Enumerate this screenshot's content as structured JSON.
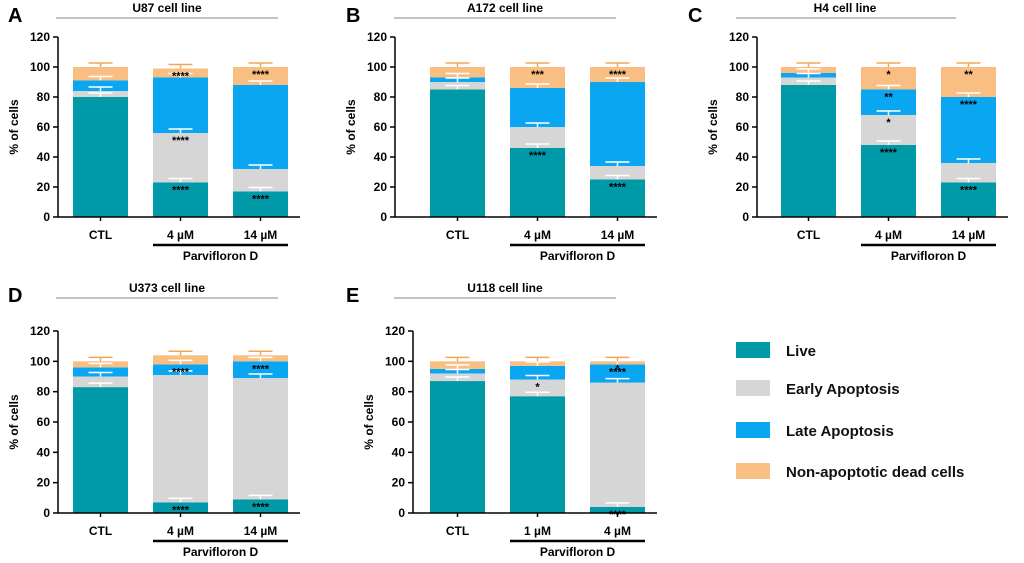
{
  "colors": {
    "live": "#0099A8",
    "early": "#D6D6D6",
    "late": "#0AA6F2",
    "dead": "#F9BF82"
  },
  "legend": {
    "live": "Live",
    "early": "Early Apoptosis",
    "late": "Late Apoptosis",
    "dead": "Non-apoptotic dead cells"
  },
  "chart_data": [
    {
      "type": "bar",
      "stacked": true,
      "panel_letter": "A",
      "title": "U87 cell line",
      "ylabel": "% of cells",
      "ylim": [
        0,
        120
      ],
      "yticks": [
        0,
        20,
        40,
        60,
        80,
        100,
        120
      ],
      "categories": [
        "CTL",
        "4 µM",
        "14 µM"
      ],
      "group_label": "Parvifloron D",
      "series": [
        {
          "name": "Live",
          "key": "live",
          "values": [
            80,
            23,
            17
          ]
        },
        {
          "name": "Early Apoptosis",
          "key": "early",
          "values": [
            4,
            33,
            15
          ]
        },
        {
          "name": "Late Apoptosis",
          "key": "late",
          "values": [
            7,
            37,
            56
          ]
        },
        {
          "name": "Non-apoptotic dead cells",
          "key": "dead",
          "values": [
            9,
            6,
            12
          ]
        }
      ],
      "annotations": [
        [
          "",
          "",
          "",
          ""
        ],
        [
          "****",
          "****",
          "",
          "****"
        ],
        [
          "****",
          "",
          "",
          "****"
        ]
      ]
    },
    {
      "type": "bar",
      "stacked": true,
      "panel_letter": "B",
      "title": "A172 cell line",
      "ylabel": "% of cells",
      "ylim": [
        0,
        120
      ],
      "yticks": [
        0,
        20,
        40,
        60,
        80,
        100,
        120
      ],
      "categories": [
        "CTL",
        "4 µM",
        "14 µM"
      ],
      "group_label": "Parvifloron D",
      "series": [
        {
          "name": "Live",
          "key": "live",
          "values": [
            85,
            46,
            25
          ]
        },
        {
          "name": "Early Apoptosis",
          "key": "early",
          "values": [
            5,
            14,
            9
          ]
        },
        {
          "name": "Late Apoptosis",
          "key": "late",
          "values": [
            3,
            26,
            56
          ]
        },
        {
          "name": "Non-apoptotic dead cells",
          "key": "dead",
          "values": [
            7,
            14,
            10
          ]
        }
      ],
      "annotations": [
        [
          "",
          "",
          "",
          ""
        ],
        [
          "****",
          "",
          "",
          "***"
        ],
        [
          "****",
          "",
          "",
          "****"
        ]
      ]
    },
    {
      "type": "bar",
      "stacked": true,
      "panel_letter": "C",
      "title": "H4 cell line",
      "ylabel": "% of cells",
      "ylim": [
        0,
        120
      ],
      "yticks": [
        0,
        20,
        40,
        60,
        80,
        100,
        120
      ],
      "categories": [
        "CTL",
        "4 µM",
        "14 µM"
      ],
      "group_label": "Parvifloron D",
      "series": [
        {
          "name": "Live",
          "key": "live",
          "values": [
            88,
            48,
            23
          ]
        },
        {
          "name": "Early Apoptosis",
          "key": "early",
          "values": [
            5,
            20,
            13
          ]
        },
        {
          "name": "Late Apoptosis",
          "key": "late",
          "values": [
            3,
            17,
            44
          ]
        },
        {
          "name": "Non-apoptotic dead cells",
          "key": "dead",
          "values": [
            4,
            15,
            20
          ]
        }
      ],
      "annotations": [
        [
          "",
          "",
          "",
          ""
        ],
        [
          "****",
          "*",
          "**",
          "*"
        ],
        [
          "****",
          "",
          "****",
          "**"
        ]
      ]
    },
    {
      "type": "bar",
      "stacked": true,
      "panel_letter": "D",
      "title": "U373 cell line",
      "ylabel": "% of cells",
      "ylim": [
        0,
        120
      ],
      "yticks": [
        0,
        20,
        40,
        60,
        80,
        100,
        120
      ],
      "categories": [
        "CTL",
        "4 µM",
        "14 µM"
      ],
      "group_label": "Parvifloron D",
      "series": [
        {
          "name": "Live",
          "key": "live",
          "values": [
            83,
            7,
            9
          ]
        },
        {
          "name": "Early Apoptosis",
          "key": "early",
          "values": [
            7,
            84,
            80
          ]
        },
        {
          "name": "Late Apoptosis",
          "key": "late",
          "values": [
            6,
            7,
            11
          ]
        },
        {
          "name": "Non-apoptotic dead cells",
          "key": "dead",
          "values": [
            4,
            6,
            4
          ]
        }
      ],
      "annotations": [
        [
          "",
          "",
          "",
          ""
        ],
        [
          "****",
          "",
          "****",
          ""
        ],
        [
          "****",
          "",
          "****",
          ""
        ]
      ]
    },
    {
      "type": "bar",
      "stacked": true,
      "panel_letter": "E",
      "title": "U118 cell line",
      "ylabel": "% of cells",
      "ylim": [
        0,
        120
      ],
      "yticks": [
        0,
        20,
        40,
        60,
        80,
        100,
        120
      ],
      "categories": [
        "CTL",
        "1 µM",
        "4 µM"
      ],
      "group_label": "Parvifloron D",
      "series": [
        {
          "name": "Live",
          "key": "live",
          "values": [
            87,
            77,
            4
          ]
        },
        {
          "name": "Early Apoptosis",
          "key": "early",
          "values": [
            5,
            11,
            82
          ]
        },
        {
          "name": "Late Apoptosis",
          "key": "late",
          "values": [
            3,
            9,
            12
          ]
        },
        {
          "name": "Non-apoptotic dead cells",
          "key": "dead",
          "values": [
            5,
            3,
            2
          ]
        }
      ],
      "annotations": [
        [
          "",
          "",
          "",
          ""
        ],
        [
          "",
          "*",
          "",
          ""
        ],
        [
          "****",
          "",
          "****",
          "*"
        ]
      ]
    }
  ]
}
